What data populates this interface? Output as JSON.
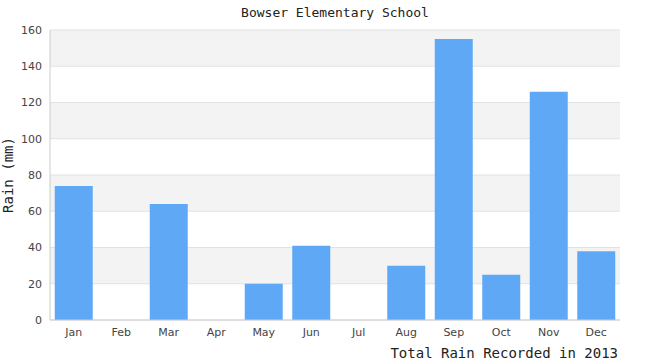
{
  "chart_data": {
    "type": "bar",
    "title": "Bowser Elementary School",
    "x_label": "Total Rain Recorded in 2013",
    "y_label": "Rain (mm)",
    "categories": [
      "Jan",
      "Feb",
      "Mar",
      "Apr",
      "May",
      "Jun",
      "Jul",
      "Aug",
      "Sep",
      "Oct",
      "Nov",
      "Dec"
    ],
    "values": [
      74,
      0,
      64,
      0,
      20,
      41,
      0,
      30,
      155,
      25,
      126,
      38
    ],
    "color": "#5fa8f5",
    "ylim": [
      0,
      160
    ],
    "yticks": [
      0,
      20,
      40,
      60,
      80,
      100,
      120,
      140,
      160
    ],
    "grid": true
  }
}
